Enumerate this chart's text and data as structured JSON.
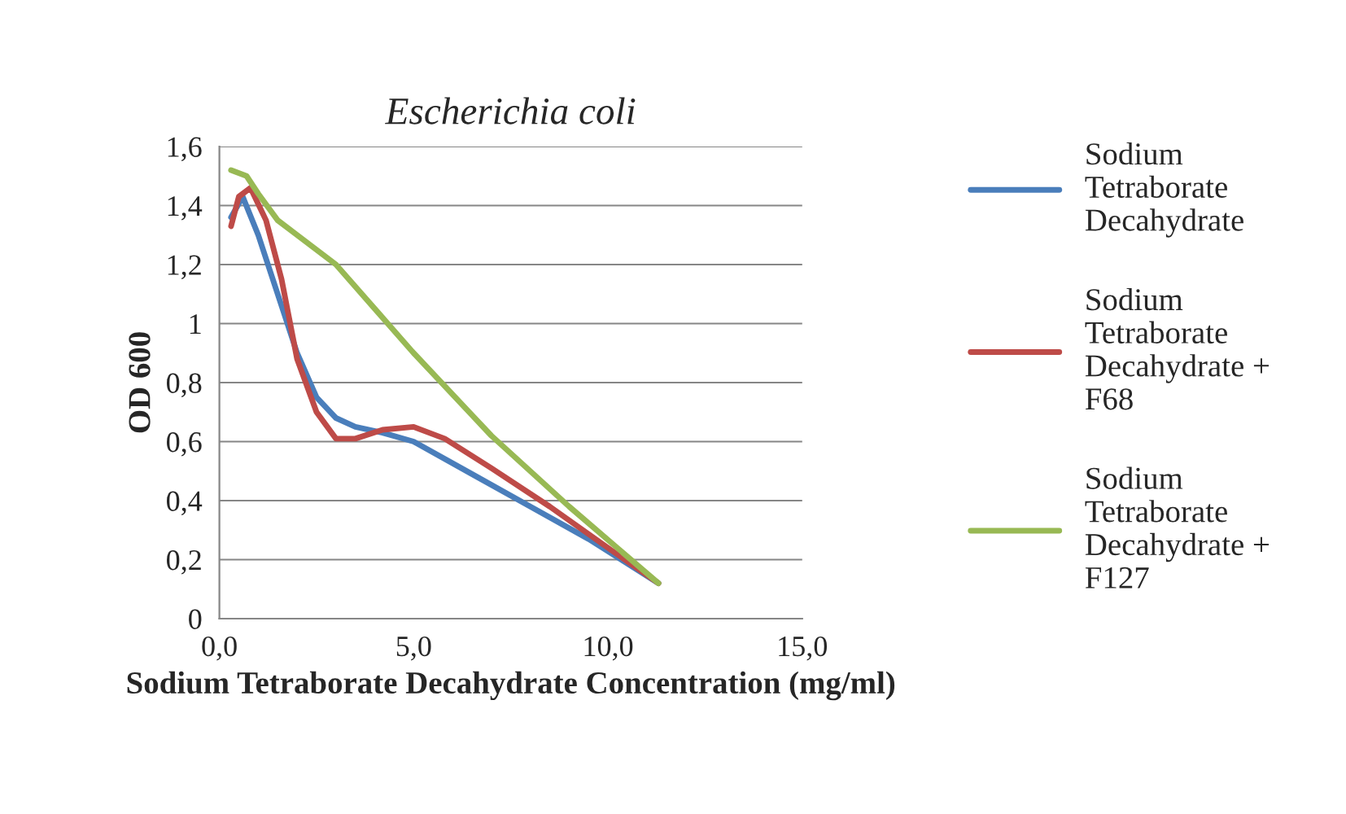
{
  "chart_data": {
    "type": "line",
    "title": "Escherichia coli",
    "xlabel": "Sodium Tetraborate Decahydrate Concentration (mg/ml)",
    "ylabel": "OD 600",
    "xlim": [
      0,
      15
    ],
    "xticks": [
      {
        "value": 0,
        "label": "0,0"
      },
      {
        "value": 5,
        "label": "5,0"
      },
      {
        "value": 10,
        "label": "10,0"
      },
      {
        "value": 15,
        "label": "15,0"
      }
    ],
    "ylim": [
      0,
      1.6
    ],
    "yticks": [
      0,
      {
        "value": 0.2,
        "label": "0,2"
      },
      {
        "value": 0.4,
        "label": "0,4"
      },
      {
        "value": 0.6,
        "label": "0,6"
      },
      {
        "value": 0.8,
        "label": "0,8"
      },
      1,
      {
        "value": 1.2,
        "label": "1,2"
      },
      {
        "value": 1.4,
        "label": "1,4"
      },
      {
        "value": 1.6,
        "label": "1,6"
      }
    ],
    "grid": "y",
    "legend": "right",
    "marker": "none",
    "line_style": "solid",
    "series": [
      {
        "name": "Sodium Tetraborate Decahydrate",
        "color": "#4a7ebb",
        "x": [
          0.3,
          0.6,
          1.0,
          1.5,
          2.0,
          2.5,
          3.0,
          3.5,
          4.2,
          5.0,
          6.5,
          8.0,
          9.5,
          11.3
        ],
        "values": [
          1.36,
          1.43,
          1.3,
          1.1,
          0.9,
          0.75,
          0.68,
          0.65,
          0.63,
          0.6,
          0.49,
          0.38,
          0.27,
          0.12
        ]
      },
      {
        "name": "Sodium Tetraborate Decahydrate + F68",
        "color": "#be4b48",
        "x": [
          0.3,
          0.5,
          0.8,
          1.2,
          1.6,
          2.0,
          2.5,
          3.0,
          3.5,
          4.2,
          5.0,
          5.8,
          7.0,
          8.5,
          10.0,
          11.3
        ],
        "values": [
          1.33,
          1.43,
          1.46,
          1.35,
          1.15,
          0.88,
          0.7,
          0.61,
          0.61,
          0.64,
          0.65,
          0.61,
          0.51,
          0.38,
          0.24,
          0.12
        ]
      },
      {
        "name": "Sodium Tetraborate Decahydrate + F127",
        "color": "#98b954",
        "x": [
          0.3,
          0.7,
          1.0,
          1.5,
          2.0,
          3.0,
          4.0,
          5.0,
          7.0,
          9.0,
          11.3
        ],
        "values": [
          1.52,
          1.5,
          1.44,
          1.35,
          1.3,
          1.2,
          1.05,
          0.9,
          0.62,
          0.38,
          0.12
        ]
      }
    ]
  }
}
